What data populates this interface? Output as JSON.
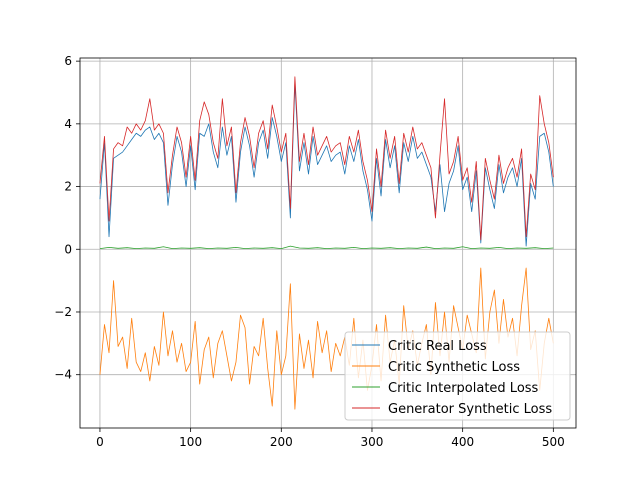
{
  "chart_data": {
    "type": "line",
    "title": "",
    "xlabel": "",
    "ylabel": "",
    "xlim": [
      -22,
      525
    ],
    "ylim": [
      -5.7,
      6.1
    ],
    "xticks": [
      0,
      100,
      200,
      300,
      400,
      500
    ],
    "yticks": [
      -4,
      -2,
      0,
      2,
      4,
      6
    ],
    "xtick_labels": [
      "0",
      "100",
      "200",
      "300",
      "400",
      "500"
    ],
    "ytick_labels": [
      "−4",
      "−2",
      "0",
      "2",
      "4",
      "6"
    ],
    "grid": true,
    "legend_position": "lower-right",
    "series": [
      {
        "name": "Critic Real Loss",
        "color": "#1f77b4",
        "x": [
          0,
          5,
          10,
          15,
          20,
          25,
          30,
          35,
          40,
          45,
          50,
          55,
          60,
          65,
          70,
          75,
          80,
          85,
          90,
          95,
          100,
          105,
          110,
          115,
          120,
          125,
          130,
          135,
          140,
          145,
          150,
          155,
          160,
          165,
          170,
          175,
          180,
          185,
          190,
          195,
          200,
          205,
          210,
          215,
          220,
          225,
          230,
          235,
          240,
          245,
          250,
          255,
          260,
          265,
          270,
          275,
          280,
          285,
          290,
          295,
          300,
          305,
          310,
          315,
          320,
          325,
          330,
          335,
          340,
          345,
          350,
          355,
          360,
          365,
          370,
          375,
          380,
          385,
          390,
          395,
          400,
          405,
          410,
          415,
          420,
          425,
          430,
          435,
          440,
          445,
          450,
          455,
          460,
          465,
          470,
          475,
          480,
          485,
          490,
          495,
          500
        ],
        "y": [
          1.6,
          3.4,
          0.4,
          2.9,
          3.0,
          3.1,
          3.3,
          3.5,
          3.7,
          3.6,
          3.8,
          3.9,
          3.5,
          3.7,
          3.4,
          1.4,
          2.7,
          3.6,
          3.1,
          2.0,
          3.3,
          1.9,
          3.7,
          3.6,
          4.0,
          3.1,
          2.6,
          3.9,
          3.0,
          3.6,
          1.5,
          3.1,
          3.9,
          3.3,
          2.3,
          3.4,
          3.8,
          2.9,
          4.2,
          3.6,
          2.8,
          3.4,
          1.0,
          5.3,
          2.5,
          3.4,
          2.4,
          3.6,
          2.7,
          3.0,
          3.3,
          2.8,
          3.0,
          3.1,
          2.4,
          3.3,
          2.8,
          3.5,
          2.5,
          1.9,
          0.9,
          2.9,
          1.7,
          3.5,
          2.6,
          3.3,
          1.8,
          3.4,
          2.8,
          3.6,
          2.9,
          3.1,
          2.7,
          2.3,
          1.2,
          2.7,
          1.2,
          2.1,
          2.5,
          3.3,
          1.9,
          2.3,
          1.2,
          2.5,
          0.2,
          2.6,
          1.9,
          1.3,
          2.7,
          1.8,
          2.3,
          2.6,
          2.0,
          2.9,
          0.1,
          2.1,
          1.6,
          3.6,
          3.7,
          3.1,
          2.0
        ]
      },
      {
        "name": "Critic Synthetic Loss",
        "color": "#ff7f0e",
        "x": [
          0,
          5,
          10,
          15,
          20,
          25,
          30,
          35,
          40,
          45,
          50,
          55,
          60,
          65,
          70,
          75,
          80,
          85,
          90,
          95,
          100,
          105,
          110,
          115,
          120,
          125,
          130,
          135,
          140,
          145,
          150,
          155,
          160,
          165,
          170,
          175,
          180,
          185,
          190,
          195,
          200,
          205,
          210,
          215,
          220,
          225,
          230,
          235,
          240,
          245,
          250,
          255,
          260,
          265,
          270,
          275,
          280,
          285,
          290,
          295,
          300,
          305,
          310,
          315,
          320,
          325,
          330,
          335,
          340,
          345,
          350,
          355,
          360,
          365,
          370,
          375,
          380,
          385,
          390,
          395,
          400,
          405,
          410,
          415,
          420,
          425,
          430,
          435,
          440,
          445,
          450,
          455,
          460,
          465,
          470,
          475,
          480,
          485,
          490,
          495,
          500
        ],
        "y": [
          -4.0,
          -2.4,
          -3.3,
          -1.0,
          -3.1,
          -2.8,
          -3.8,
          -2.2,
          -3.6,
          -3.9,
          -3.3,
          -4.2,
          -3.1,
          -3.7,
          -2.0,
          -3.4,
          -2.6,
          -3.6,
          -3.0,
          -3.9,
          -3.6,
          -2.3,
          -4.3,
          -3.2,
          -2.8,
          -4.1,
          -3.0,
          -2.6,
          -3.4,
          -4.2,
          -3.6,
          -2.1,
          -2.5,
          -4.3,
          -3.1,
          -3.4,
          -2.2,
          -3.8,
          -5.0,
          -2.6,
          -4.0,
          -3.4,
          -1.1,
          -5.1,
          -2.7,
          -3.8,
          -2.9,
          -4.1,
          -2.3,
          -3.3,
          -2.6,
          -3.9,
          -3.0,
          -3.4,
          -2.8,
          -3.7,
          -2.2,
          -4.1,
          -2.9,
          -4.5,
          -3.7,
          -2.4,
          -4.2,
          -2.1,
          -3.6,
          -2.9,
          -4.3,
          -1.8,
          -3.2,
          -2.6,
          -3.7,
          -3.0,
          -2.4,
          -4.0,
          -1.7,
          -3.4,
          -2.0,
          -3.6,
          -1.8,
          -2.5,
          -3.2,
          -2.1,
          -2.7,
          -3.3,
          -0.6,
          -3.5,
          -2.0,
          -1.3,
          -3.0,
          -1.6,
          -2.8,
          -2.2,
          -3.4,
          -1.8,
          -0.6,
          -3.2,
          -2.6,
          -4.5,
          -3.0,
          -2.2,
          -3.0
        ]
      },
      {
        "name": "Critic Interpolated Loss",
        "color": "#2ca02c",
        "x": [
          0,
          10,
          20,
          30,
          40,
          50,
          60,
          70,
          80,
          90,
          100,
          110,
          120,
          130,
          140,
          150,
          160,
          170,
          180,
          190,
          200,
          210,
          220,
          230,
          240,
          250,
          260,
          270,
          280,
          290,
          300,
          310,
          320,
          330,
          340,
          350,
          360,
          370,
          380,
          390,
          400,
          410,
          420,
          430,
          440,
          450,
          460,
          470,
          480,
          490,
          500
        ],
        "y": [
          0.02,
          0.06,
          0.03,
          0.05,
          0.02,
          0.04,
          0.03,
          0.08,
          0.02,
          0.04,
          0.03,
          0.05,
          0.02,
          0.04,
          0.03,
          0.06,
          0.02,
          0.04,
          0.03,
          0.05,
          0.02,
          0.1,
          0.04,
          0.03,
          0.05,
          0.02,
          0.04,
          0.03,
          0.06,
          0.02,
          0.04,
          0.03,
          0.05,
          0.02,
          0.04,
          0.03,
          0.07,
          0.02,
          0.04,
          0.03,
          0.08,
          0.02,
          0.04,
          0.03,
          0.06,
          0.02,
          0.04,
          0.03,
          0.05,
          0.02,
          0.04
        ]
      },
      {
        "name": "Generator Synthetic Loss",
        "color": "#d62728",
        "x": [
          0,
          5,
          10,
          15,
          20,
          25,
          30,
          35,
          40,
          45,
          50,
          55,
          60,
          65,
          70,
          75,
          80,
          85,
          90,
          95,
          100,
          105,
          110,
          115,
          120,
          125,
          130,
          135,
          140,
          145,
          150,
          155,
          160,
          165,
          170,
          175,
          180,
          185,
          190,
          195,
          200,
          205,
          210,
          215,
          220,
          225,
          230,
          235,
          240,
          245,
          250,
          255,
          260,
          265,
          270,
          275,
          280,
          285,
          290,
          295,
          300,
          305,
          310,
          315,
          320,
          325,
          330,
          335,
          340,
          345,
          350,
          355,
          360,
          365,
          370,
          375,
          380,
          385,
          390,
          395,
          400,
          405,
          410,
          415,
          420,
          425,
          430,
          435,
          440,
          445,
          450,
          455,
          460,
          465,
          470,
          475,
          480,
          485,
          490,
          495,
          500
        ],
        "y": [
          2.1,
          3.6,
          0.9,
          3.2,
          3.4,
          3.3,
          3.9,
          3.7,
          4.0,
          3.8,
          4.1,
          4.8,
          3.8,
          4.0,
          3.7,
          1.8,
          3.0,
          3.9,
          3.4,
          2.3,
          3.6,
          2.2,
          4.1,
          4.7,
          4.3,
          3.4,
          2.9,
          4.8,
          3.3,
          3.9,
          1.8,
          3.4,
          4.2,
          3.6,
          2.6,
          3.7,
          4.1,
          3.2,
          4.6,
          3.9,
          3.1,
          3.7,
          1.3,
          5.5,
          2.8,
          3.7,
          2.7,
          3.9,
          3.0,
          3.3,
          3.6,
          3.1,
          3.3,
          3.4,
          2.7,
          3.6,
          3.1,
          3.8,
          2.8,
          2.2,
          1.2,
          3.2,
          2.0,
          3.8,
          2.9,
          3.6,
          2.1,
          3.7,
          3.1,
          3.9,
          3.2,
          3.4,
          3.0,
          2.6,
          1.0,
          3.0,
          4.8,
          2.4,
          2.8,
          3.6,
          2.2,
          2.6,
          1.5,
          2.8,
          0.3,
          2.9,
          2.2,
          1.6,
          3.0,
          2.1,
          2.6,
          2.9,
          2.3,
          3.2,
          0.4,
          2.4,
          1.9,
          4.9,
          4.0,
          3.4,
          2.3
        ]
      }
    ]
  }
}
